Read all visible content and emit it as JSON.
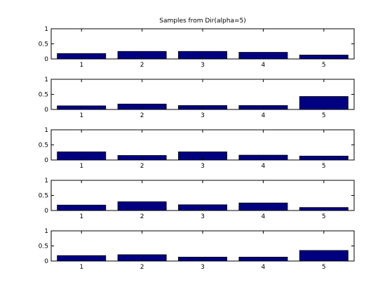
{
  "chart_data": {
    "title": "Samples from Dir(alpha=5)",
    "xlabel": "",
    "ylabel": "",
    "colors": {
      "bar_fill": "#000080",
      "bar_stroke": "#000000",
      "axes": "#000000",
      "background": "#ffffff"
    },
    "grid": false,
    "subplots": [
      {
        "type": "bar",
        "categories": [
          "1",
          "2",
          "3",
          "4",
          "5"
        ],
        "values": [
          0.18,
          0.25,
          0.25,
          0.22,
          0.13
        ],
        "ylim": [
          0,
          1
        ],
        "yticks": [
          "0",
          "0.5",
          "1"
        ]
      },
      {
        "type": "bar",
        "categories": [
          "1",
          "2",
          "3",
          "4",
          "5"
        ],
        "values": [
          0.12,
          0.18,
          0.13,
          0.13,
          0.43
        ],
        "ylim": [
          0,
          1
        ],
        "yticks": [
          "0",
          "0.5",
          "1"
        ]
      },
      {
        "type": "bar",
        "categories": [
          "1",
          "2",
          "3",
          "4",
          "5"
        ],
        "values": [
          0.27,
          0.15,
          0.27,
          0.16,
          0.13
        ],
        "ylim": [
          0,
          1
        ],
        "yticks": [
          "0",
          "0.5",
          "1"
        ]
      },
      {
        "type": "bar",
        "categories": [
          "1",
          "2",
          "3",
          "4",
          "5"
        ],
        "values": [
          0.18,
          0.29,
          0.19,
          0.25,
          0.1
        ],
        "ylim": [
          0,
          1
        ],
        "yticks": [
          "0",
          "0.5",
          "1"
        ]
      },
      {
        "type": "bar",
        "categories": [
          "1",
          "2",
          "3",
          "4",
          "5"
        ],
        "values": [
          0.18,
          0.21,
          0.13,
          0.13,
          0.35
        ],
        "ylim": [
          0,
          1
        ],
        "yticks": [
          "0",
          "0.5",
          "1"
        ]
      }
    ]
  }
}
